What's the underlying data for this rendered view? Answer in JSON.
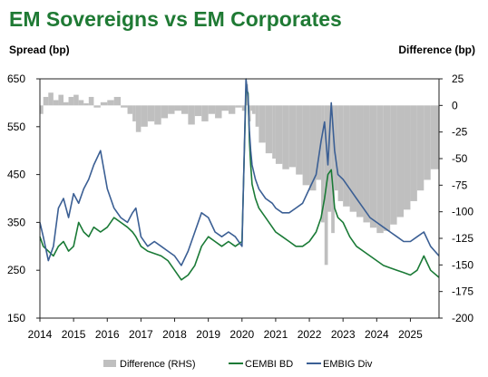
{
  "title": "EM Sovereigns vs EM Corporates",
  "chart_data": {
    "type": "line",
    "ylabel_left": "Spread (bp)",
    "ylabel_right": "Difference (bp)",
    "x_range": [
      2014,
      2025.85
    ],
    "x_ticks": [
      "2014",
      "2015",
      "2016",
      "2017",
      "2018",
      "2019",
      "2020",
      "2021",
      "2022",
      "2023",
      "2024",
      "2025"
    ],
    "ylim_left": [
      150,
      650
    ],
    "yticks_left": [
      150,
      250,
      350,
      450,
      550,
      650
    ],
    "ylim_right": [
      -200,
      25
    ],
    "yticks_right": [
      25,
      0,
      -25,
      -50,
      -75,
      -100,
      -125,
      -150,
      -175,
      -200
    ],
    "legend_position": "bottom",
    "colors": {
      "difference": "#bfbfbf",
      "cembi": "#1a7a36",
      "embig": "#3b5f94"
    },
    "series": [
      {
        "name": "Difference (RHS)",
        "axis": "right",
        "style": "area",
        "x": [
          2014.0,
          2014.1,
          2014.25,
          2014.4,
          2014.55,
          2014.7,
          2014.85,
          2015.0,
          2015.15,
          2015.3,
          2015.45,
          2015.6,
          2015.8,
          2016.0,
          2016.2,
          2016.4,
          2016.6,
          2016.75,
          2016.85,
          2017.0,
          2017.2,
          2017.4,
          2017.6,
          2017.8,
          2018.0,
          2018.2,
          2018.4,
          2018.6,
          2018.8,
          2019.0,
          2019.2,
          2019.4,
          2019.6,
          2019.8,
          2020.0,
          2020.12,
          2020.18,
          2020.22,
          2020.26,
          2020.3,
          2020.4,
          2020.5,
          2020.7,
          2020.9,
          2021.0,
          2021.2,
          2021.4,
          2021.6,
          2021.8,
          2022.0,
          2022.2,
          2022.35,
          2022.45,
          2022.55,
          2022.65,
          2022.75,
          2022.85,
          2023.0,
          2023.2,
          2023.4,
          2023.6,
          2023.8,
          2024.0,
          2024.2,
          2024.4,
          2024.6,
          2024.8,
          2025.0,
          2025.2,
          2025.4,
          2025.6,
          2025.85
        ],
        "values": [
          -8,
          8,
          12,
          5,
          10,
          3,
          8,
          10,
          5,
          2,
          8,
          -2,
          3,
          5,
          8,
          -2,
          -8,
          -15,
          -25,
          -20,
          -15,
          -18,
          -12,
          -8,
          -5,
          -8,
          -18,
          -10,
          -15,
          -8,
          -12,
          -5,
          -8,
          -2,
          -5,
          20,
          -10,
          -15,
          -5,
          -8,
          -20,
          -35,
          -45,
          -50,
          -55,
          -60,
          -58,
          -65,
          -75,
          -80,
          -70,
          -110,
          -150,
          -100,
          -120,
          -80,
          -90,
          -95,
          -100,
          -105,
          -110,
          -115,
          -120,
          -118,
          -112,
          -105,
          -98,
          -90,
          -80,
          -70,
          -60,
          -45
        ]
      },
      {
        "name": "CEMBI BD",
        "axis": "left",
        "style": "line",
        "x": [
          2014.0,
          2014.1,
          2014.25,
          2014.4,
          2014.55,
          2014.7,
          2014.85,
          2015.0,
          2015.15,
          2015.3,
          2015.45,
          2015.6,
          2015.8,
          2016.0,
          2016.2,
          2016.4,
          2016.6,
          2016.75,
          2016.85,
          2017.0,
          2017.2,
          2017.4,
          2017.6,
          2017.8,
          2018.0,
          2018.2,
          2018.4,
          2018.6,
          2018.8,
          2019.0,
          2019.2,
          2019.4,
          2019.6,
          2019.8,
          2020.0,
          2020.12,
          2020.18,
          2020.22,
          2020.26,
          2020.3,
          2020.4,
          2020.5,
          2020.7,
          2020.9,
          2021.0,
          2021.2,
          2021.4,
          2021.6,
          2021.8,
          2022.0,
          2022.2,
          2022.35,
          2022.45,
          2022.55,
          2022.65,
          2022.75,
          2022.85,
          2023.0,
          2023.2,
          2023.4,
          2023.6,
          2023.8,
          2024.0,
          2024.2,
          2024.4,
          2024.6,
          2024.8,
          2025.0,
          2025.2,
          2025.4,
          2025.6,
          2025.85
        ],
        "values": [
          320,
          300,
          290,
          280,
          300,
          310,
          290,
          300,
          350,
          330,
          320,
          340,
          330,
          340,
          360,
          350,
          340,
          330,
          320,
          300,
          290,
          285,
          280,
          270,
          250,
          230,
          240,
          260,
          300,
          320,
          310,
          300,
          310,
          300,
          310,
          630,
          620,
          520,
          470,
          430,
          400,
          380,
          360,
          340,
          330,
          320,
          310,
          300,
          300,
          310,
          330,
          360,
          400,
          450,
          460,
          380,
          360,
          350,
          320,
          300,
          290,
          280,
          270,
          260,
          255,
          250,
          245,
          240,
          250,
          280,
          250,
          235
        ]
      },
      {
        "name": "EMBIG Div",
        "axis": "left",
        "style": "line",
        "x": [
          2014.0,
          2014.1,
          2014.25,
          2014.4,
          2014.55,
          2014.7,
          2014.85,
          2015.0,
          2015.15,
          2015.3,
          2015.45,
          2015.6,
          2015.8,
          2016.0,
          2016.2,
          2016.4,
          2016.6,
          2016.75,
          2016.85,
          2017.0,
          2017.2,
          2017.4,
          2017.6,
          2017.8,
          2018.0,
          2018.2,
          2018.4,
          2018.6,
          2018.8,
          2019.0,
          2019.2,
          2019.4,
          2019.6,
          2019.8,
          2020.0,
          2020.12,
          2020.18,
          2020.22,
          2020.26,
          2020.3,
          2020.4,
          2020.5,
          2020.7,
          2020.9,
          2021.0,
          2021.2,
          2021.4,
          2021.6,
          2021.8,
          2022.0,
          2022.2,
          2022.35,
          2022.45,
          2022.55,
          2022.65,
          2022.75,
          2022.85,
          2023.0,
          2023.2,
          2023.4,
          2023.6,
          2023.8,
          2024.0,
          2024.2,
          2024.4,
          2024.6,
          2024.8,
          2025.0,
          2025.2,
          2025.4,
          2025.6,
          2025.85
        ],
        "values": [
          350,
          320,
          270,
          300,
          380,
          400,
          360,
          410,
          390,
          420,
          440,
          470,
          500,
          420,
          380,
          360,
          350,
          370,
          380,
          320,
          300,
          310,
          300,
          290,
          280,
          260,
          290,
          330,
          370,
          360,
          330,
          320,
          330,
          320,
          300,
          650,
          610,
          540,
          500,
          470,
          440,
          420,
          400,
          390,
          380,
          370,
          370,
          380,
          390,
          420,
          450,
          520,
          560,
          470,
          600,
          500,
          450,
          440,
          420,
          400,
          380,
          360,
          350,
          340,
          330,
          320,
          310,
          310,
          320,
          330,
          300,
          280
        ]
      }
    ]
  }
}
